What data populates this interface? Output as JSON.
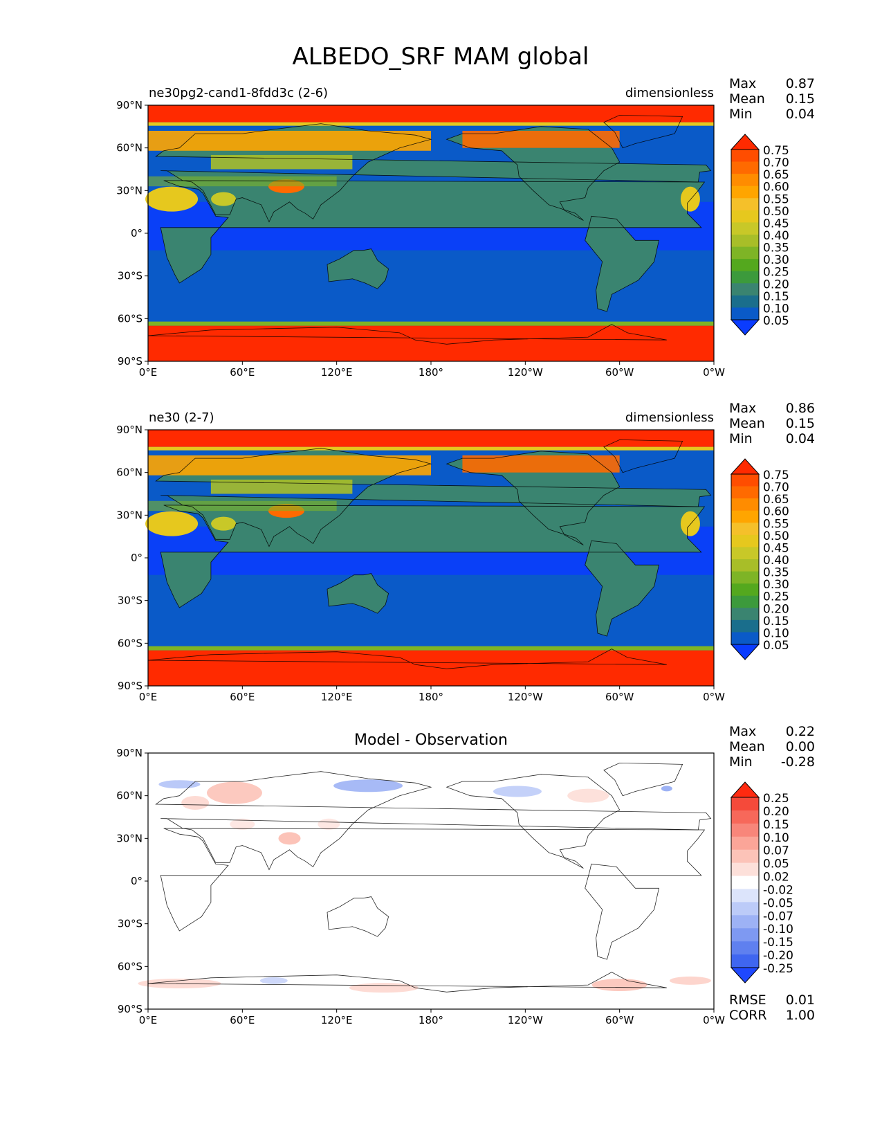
{
  "figure": {
    "title": "ALBEDO_SRF MAM global"
  },
  "chart_data": [
    {
      "type": "heatmap",
      "title_left": "ne30pg2-cand1-8fdd3c (2-6)",
      "title_right": "dimensionless",
      "title_center": "",
      "stats": [
        {
          "label": "Max",
          "value": "0.87"
        },
        {
          "label": "Mean",
          "value": "0.15"
        },
        {
          "label": "Min",
          "value": "0.04"
        }
      ],
      "xticks": [
        "0°E",
        "60°E",
        "120°E",
        "180°",
        "120°W",
        "60°W",
        "0°W"
      ],
      "yticks": [
        "90°N",
        "60°N",
        "30°N",
        "0°",
        "30°S",
        "60°S",
        "90°S"
      ],
      "colorbar_levels": [
        "0.75",
        "0.70",
        "0.65",
        "0.60",
        "0.55",
        "0.50",
        "0.45",
        "0.40",
        "0.35",
        "0.30",
        "0.25",
        "0.20",
        "0.15",
        "0.10",
        "0.05"
      ],
      "colorbar_colors": [
        "#ff2a00",
        "#ff4d00",
        "#ff6a00",
        "#ff8c00",
        "#ffa500",
        "#f5c02a",
        "#e6c81e",
        "#c8c828",
        "#a8be28",
        "#7eb426",
        "#54a81e",
        "#3c9a3c",
        "#3a8470",
        "#1a6e8c",
        "#0a5ac8",
        "#0a3cff"
      ],
      "extend": "both"
    },
    {
      "type": "heatmap",
      "title_left": "ne30 (2-7)",
      "title_right": "dimensionless",
      "title_center": "",
      "stats": [
        {
          "label": "Max",
          "value": "0.86"
        },
        {
          "label": "Mean",
          "value": "0.15"
        },
        {
          "label": "Min",
          "value": "0.04"
        }
      ],
      "xticks": [
        "0°E",
        "60°E",
        "120°E",
        "180°",
        "120°W",
        "60°W",
        "0°W"
      ],
      "yticks": [
        "90°N",
        "60°N",
        "30°N",
        "0°",
        "30°S",
        "60°S",
        "90°S"
      ],
      "colorbar_levels": [
        "0.75",
        "0.70",
        "0.65",
        "0.60",
        "0.55",
        "0.50",
        "0.45",
        "0.40",
        "0.35",
        "0.30",
        "0.25",
        "0.20",
        "0.15",
        "0.10",
        "0.05"
      ],
      "colorbar_colors": [
        "#ff2a00",
        "#ff4d00",
        "#ff6a00",
        "#ff8c00",
        "#ffa500",
        "#f5c02a",
        "#e6c81e",
        "#c8c828",
        "#a8be28",
        "#7eb426",
        "#54a81e",
        "#3c9a3c",
        "#3a8470",
        "#1a6e8c",
        "#0a5ac8",
        "#0a3cff"
      ],
      "extend": "both"
    },
    {
      "type": "heatmap",
      "title_left": "",
      "title_right": "",
      "title_center": "Model - Observation",
      "stats": [
        {
          "label": "Max",
          "value": "0.22"
        },
        {
          "label": "Mean",
          "value": "0.00"
        },
        {
          "label": "Min",
          "value": "-0.28"
        }
      ],
      "extra_stats": [
        {
          "label": "RMSE",
          "value": "0.01"
        },
        {
          "label": "CORR",
          "value": "1.00"
        }
      ],
      "xticks": [
        "0°E",
        "60°E",
        "120°E",
        "180°",
        "120°W",
        "60°W",
        "0°W"
      ],
      "yticks": [
        "90°N",
        "60°N",
        "30°N",
        "0°",
        "30°S",
        "60°S",
        "90°S"
      ],
      "colorbar_levels": [
        "0.25",
        "0.20",
        "0.15",
        "0.10",
        "0.07",
        "0.05",
        "0.02",
        "-0.02",
        "-0.05",
        "-0.07",
        "-0.10",
        "-0.15",
        "-0.20",
        "-0.25"
      ],
      "colorbar_colors": [
        "#ff2a10",
        "#f54a3a",
        "#f7685a",
        "#f8867a",
        "#fba598",
        "#fcc3b8",
        "#fde0da",
        "#ffffff",
        "#dce4fb",
        "#bccbf8",
        "#9db2f5",
        "#7e99f2",
        "#5f80ef",
        "#3f66f0",
        "#1f48ff"
      ],
      "extend": "both"
    }
  ]
}
